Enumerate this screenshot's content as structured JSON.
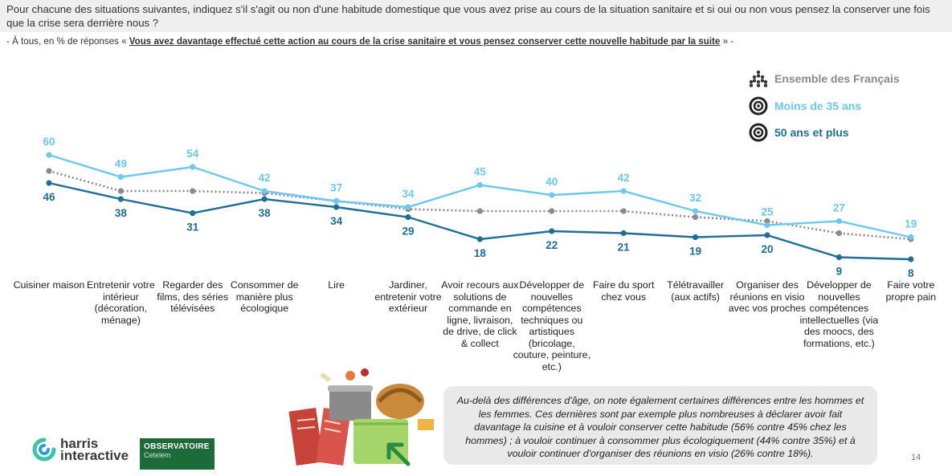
{
  "header": {
    "question": "Pour chacune des situations suivantes, indiquez s'il s'agit ou non d'une habitude domestique que vous avez prise au cours de la situation sanitaire et si oui ou non vous pensez la conserver une fois que la crise sera derrière nous ?",
    "subtitle_prefix": "- À tous, en % de réponses « ",
    "subtitle_emphasis": "Vous avez davantage effectué cette action au cours de la crise sanitaire et vous pensez conserver cette nouvelle habitude par la suite",
    "subtitle_suffix": " » -"
  },
  "colors": {
    "ensemble": "#8a8a8a",
    "moins35": "#6cc8ef",
    "plus50": "#1f6e96"
  },
  "chart_data": {
    "type": "line",
    "categories": [
      "Cuisiner maison",
      "Entretenir votre intérieur (décoration, ménage)",
      "Regarder des films, des séries télévisées",
      "Consommer de manière plus écologique",
      "Lire",
      "Jardiner, entretenir votre extérieur",
      "Avoir recours aux solutions de commande en ligne, livraison, de drive, de click & collect",
      "Développer de nouvelles compétences techniques ou artistiques (bricolage, couture, peinture, etc.)",
      "Faire du sport chez vous",
      "Télétravailler (aux actifs)",
      "Organiser des réunions en visio avec vos proches",
      "Développer de nouvelles compétences intellectuelles (via des moocs, des formations, etc.)",
      "Faire votre propre pain"
    ],
    "series": [
      {
        "name": "Ensemble des Français",
        "values": [
          52,
          42,
          42,
          41,
          37,
          33,
          32,
          32,
          32,
          29,
          27,
          21,
          18
        ]
      },
      {
        "name": "Moins de 35 ans",
        "values": [
          60,
          49,
          54,
          42,
          37,
          34,
          45,
          40,
          42,
          32,
          25,
          27,
          19
        ]
      },
      {
        "name": "50 ans et plus",
        "values": [
          46,
          38,
          31,
          38,
          34,
          29,
          18,
          22,
          21,
          19,
          20,
          9,
          8
        ]
      }
    ],
    "labeled_series": [
      "Moins de 35 ans",
      "50 ans et plus"
    ],
    "legend_position": "top-right",
    "grid": false,
    "ylim": [
      0,
      70
    ]
  },
  "note": "Au-delà des différences d'âge, on note également certaines différences entre les hommes et les femmes. Ces dernières sont par exemple plus nombreuses à déclarer avoir fait davantage la cuisine et à vouloir conserver cette habitude (56% contre 45% chez les hommes) ; à vouloir continuer à consommer plus écologiquement (44% contre 35%) et à vouloir continuer d'organiser des réunions en visio (26% contre 18%).",
  "footer": {
    "harris_logo_text_1": "harris",
    "harris_logo_text_2": "interactive",
    "observatoire_title": "OBSERVATOIRE",
    "observatoire_sub": "Cetelem",
    "page_number": "14"
  },
  "icons": [
    "people-group-icon",
    "target-icon",
    "cooking-illustration",
    "cursor-icon"
  ]
}
